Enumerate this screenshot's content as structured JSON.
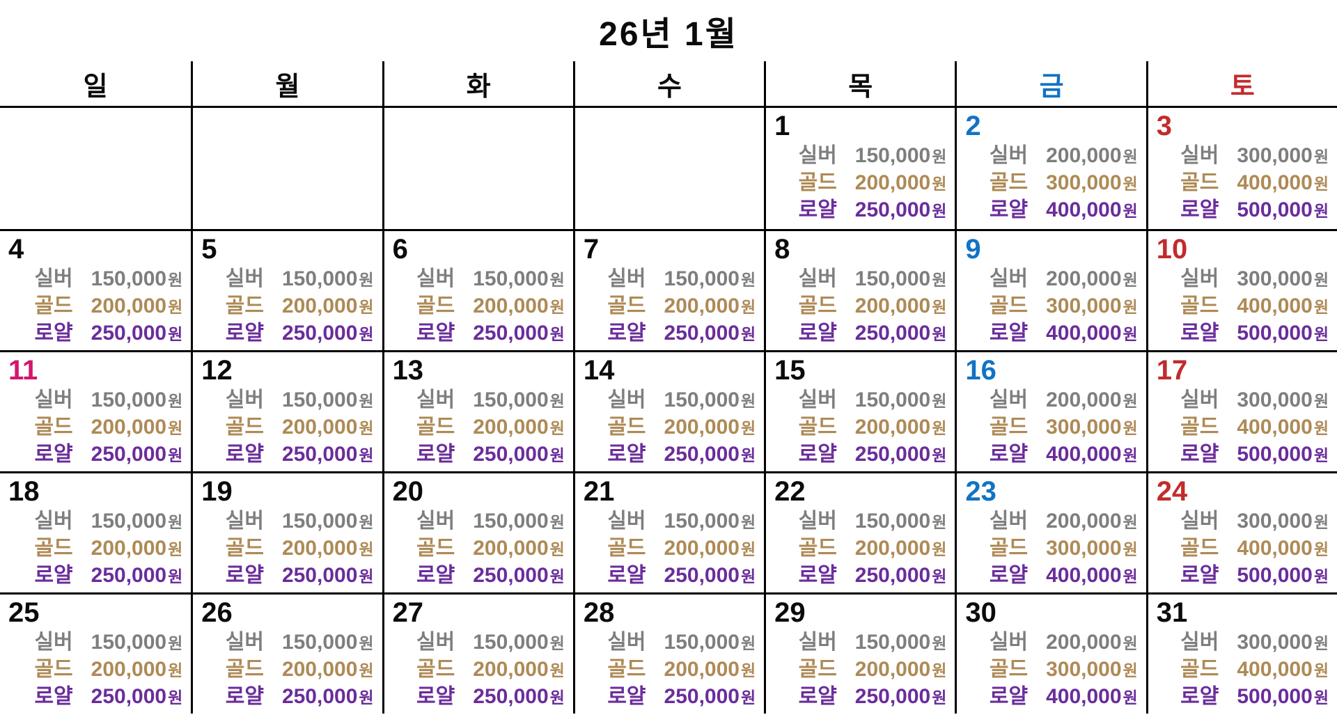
{
  "title": "26년 1월",
  "weekdays": [
    {
      "label": "일",
      "color": "#0b0b0b"
    },
    {
      "label": "월",
      "color": "#0b0b0b"
    },
    {
      "label": "화",
      "color": "#0b0b0b"
    },
    {
      "label": "수",
      "color": "#0b0b0b"
    },
    {
      "label": "목",
      "color": "#0b0b0b"
    },
    {
      "label": "금",
      "color": "#1173C4"
    },
    {
      "label": "토",
      "color": "#C22B2B"
    }
  ],
  "tiers": [
    {
      "label": "실버",
      "color": "#7E7E7E"
    },
    {
      "label": "골드",
      "color": "#AE8A56"
    },
    {
      "label": "로얄",
      "color": "#6A2D9B"
    }
  ],
  "currency_suffix": "원",
  "weeks": [
    [
      null,
      null,
      null,
      null,
      {
        "num": "1",
        "color": "#0b0b0b",
        "prices": [
          "150,000",
          "200,000",
          "250,000"
        ]
      },
      {
        "num": "2",
        "color": "#1173C4",
        "prices": [
          "200,000",
          "300,000",
          "400,000"
        ]
      },
      {
        "num": "3",
        "color": "#C22B2B",
        "prices": [
          "300,000",
          "400,000",
          "500,000"
        ]
      }
    ],
    [
      {
        "num": "4",
        "color": "#0b0b0b",
        "prices": [
          "150,000",
          "200,000",
          "250,000"
        ]
      },
      {
        "num": "5",
        "color": "#0b0b0b",
        "prices": [
          "150,000",
          "200,000",
          "250,000"
        ]
      },
      {
        "num": "6",
        "color": "#0b0b0b",
        "prices": [
          "150,000",
          "200,000",
          "250,000"
        ]
      },
      {
        "num": "7",
        "color": "#0b0b0b",
        "prices": [
          "150,000",
          "200,000",
          "250,000"
        ]
      },
      {
        "num": "8",
        "color": "#0b0b0b",
        "prices": [
          "150,000",
          "200,000",
          "250,000"
        ]
      },
      {
        "num": "9",
        "color": "#1173C4",
        "prices": [
          "200,000",
          "300,000",
          "400,000"
        ]
      },
      {
        "num": "10",
        "color": "#C22B2B",
        "prices": [
          "300,000",
          "400,000",
          "500,000"
        ]
      }
    ],
    [
      {
        "num": "11",
        "color": "#D4156B",
        "prices": [
          "150,000",
          "200,000",
          "250,000"
        ]
      },
      {
        "num": "12",
        "color": "#0b0b0b",
        "prices": [
          "150,000",
          "200,000",
          "250,000"
        ]
      },
      {
        "num": "13",
        "color": "#0b0b0b",
        "prices": [
          "150,000",
          "200,000",
          "250,000"
        ]
      },
      {
        "num": "14",
        "color": "#0b0b0b",
        "prices": [
          "150,000",
          "200,000",
          "250,000"
        ]
      },
      {
        "num": "15",
        "color": "#0b0b0b",
        "prices": [
          "150,000",
          "200,000",
          "250,000"
        ]
      },
      {
        "num": "16",
        "color": "#1173C4",
        "prices": [
          "200,000",
          "300,000",
          "400,000"
        ]
      },
      {
        "num": "17",
        "color": "#C22B2B",
        "prices": [
          "300,000",
          "400,000",
          "500,000"
        ]
      }
    ],
    [
      {
        "num": "18",
        "color": "#0b0b0b",
        "prices": [
          "150,000",
          "200,000",
          "250,000"
        ]
      },
      {
        "num": "19",
        "color": "#0b0b0b",
        "prices": [
          "150,000",
          "200,000",
          "250,000"
        ]
      },
      {
        "num": "20",
        "color": "#0b0b0b",
        "prices": [
          "150,000",
          "200,000",
          "250,000"
        ]
      },
      {
        "num": "21",
        "color": "#0b0b0b",
        "prices": [
          "150,000",
          "200,000",
          "250,000"
        ]
      },
      {
        "num": "22",
        "color": "#0b0b0b",
        "prices": [
          "150,000",
          "200,000",
          "250,000"
        ]
      },
      {
        "num": "23",
        "color": "#1173C4",
        "prices": [
          "200,000",
          "300,000",
          "400,000"
        ]
      },
      {
        "num": "24",
        "color": "#C22B2B",
        "prices": [
          "300,000",
          "400,000",
          "500,000"
        ]
      }
    ],
    [
      {
        "num": "25",
        "color": "#0b0b0b",
        "prices": [
          "150,000",
          "200,000",
          "250,000"
        ]
      },
      {
        "num": "26",
        "color": "#0b0b0b",
        "prices": [
          "150,000",
          "200,000",
          "250,000"
        ]
      },
      {
        "num": "27",
        "color": "#0b0b0b",
        "prices": [
          "150,000",
          "200,000",
          "250,000"
        ]
      },
      {
        "num": "28",
        "color": "#0b0b0b",
        "prices": [
          "150,000",
          "200,000",
          "250,000"
        ]
      },
      {
        "num": "29",
        "color": "#0b0b0b",
        "prices": [
          "150,000",
          "200,000",
          "250,000"
        ]
      },
      {
        "num": "30",
        "color": "#0b0b0b",
        "prices": [
          "200,000",
          "300,000",
          "400,000"
        ]
      },
      {
        "num": "31",
        "color": "#0b0b0b",
        "prices": [
          "300,000",
          "400,000",
          "500,000"
        ]
      }
    ]
  ]
}
